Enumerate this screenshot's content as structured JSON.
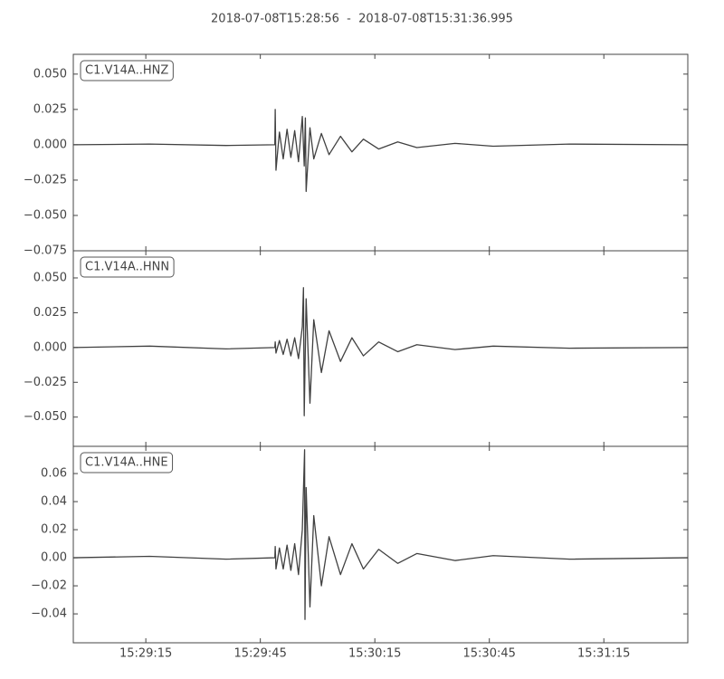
{
  "title": "2018-07-08T15:28:56  -  2018-07-08T15:31:36.995",
  "chart_data": [
    {
      "type": "line",
      "x": [
        0,
        20,
        40,
        52.8,
        52.9,
        53.1,
        54,
        55,
        56,
        57,
        58,
        59,
        60,
        60.5,
        60.8,
        61,
        62,
        63,
        65,
        67,
        70,
        73,
        76,
        80,
        85,
        90,
        100,
        110,
        130,
        160.995
      ],
      "series": [
        {
          "name": "C1.V14A..HNZ",
          "color": "#404040",
          "values": [
            0,
            0.0005,
            -0.0005,
            0,
            0.025,
            -0.018,
            0.009,
            -0.01,
            0.011,
            -0.009,
            0.01,
            -0.012,
            0.02,
            -0.015,
            0.019,
            -0.033,
            0.012,
            -0.01,
            0.008,
            -0.007,
            0.006,
            -0.005,
            0.004,
            -0.003,
            0.002,
            -0.002,
            0.001,
            -0.001,
            0.0005,
            0
          ]
        }
      ],
      "xlim": [
        0,
        160.995
      ],
      "ylim": [
        -0.075,
        0.064
      ],
      "yticks": [
        {
          "value": -0.075,
          "label": "−0.075"
        },
        {
          "value": -0.05,
          "label": "−0.050"
        },
        {
          "value": -0.025,
          "label": "−0.025"
        },
        {
          "value": 0,
          "label": "0.000"
        },
        {
          "value": 0.025,
          "label": "0.025"
        },
        {
          "value": 0.05,
          "label": "0.050"
        }
      ]
    },
    {
      "type": "line",
      "x": [
        0,
        20,
        40,
        52.8,
        52.9,
        53.1,
        54,
        55,
        56,
        57,
        58,
        59,
        60,
        60.3,
        60.5,
        61,
        62,
        63,
        65,
        67,
        70,
        73,
        76,
        80,
        85,
        90,
        100,
        110,
        130,
        160.995
      ],
      "series": [
        {
          "name": "C1.V14A..HNN",
          "color": "#404040",
          "values": [
            0,
            0.001,
            -0.001,
            0,
            0.004,
            -0.004,
            0.005,
            -0.005,
            0.006,
            -0.006,
            0.007,
            -0.008,
            0.015,
            0.043,
            -0.049,
            0.035,
            -0.04,
            0.02,
            -0.018,
            0.012,
            -0.01,
            0.007,
            -0.006,
            0.004,
            -0.003,
            0.002,
            -0.0015,
            0.001,
            -0.0005,
            0
          ]
        }
      ],
      "xlim": [
        0,
        160.995
      ],
      "ylim": [
        -0.071,
        0.0695
      ],
      "yticks": [
        {
          "value": -0.05,
          "label": "−0.050"
        },
        {
          "value": -0.025,
          "label": "−0.025"
        },
        {
          "value": 0,
          "label": "0.000"
        },
        {
          "value": 0.025,
          "label": "0.025"
        },
        {
          "value": 0.05,
          "label": "0.050"
        }
      ]
    },
    {
      "type": "line",
      "x": [
        0,
        20,
        40,
        52.8,
        52.9,
        53.1,
        54,
        55,
        56,
        57,
        58,
        59,
        60,
        60.6,
        60.7,
        61,
        62,
        63,
        65,
        67,
        70,
        73,
        76,
        80,
        85,
        90,
        100,
        110,
        130,
        160.995
      ],
      "series": [
        {
          "name": "C1.V14A..HNE",
          "color": "#404040",
          "values": [
            0,
            0.001,
            -0.001,
            0,
            0.008,
            -0.008,
            0.007,
            -0.008,
            0.009,
            -0.009,
            0.01,
            -0.012,
            0.02,
            0.077,
            -0.044,
            0.05,
            -0.035,
            0.03,
            -0.02,
            0.015,
            -0.012,
            0.01,
            -0.008,
            0.006,
            -0.004,
            0.003,
            -0.002,
            0.0015,
            -0.001,
            0
          ]
        }
      ],
      "xlim": [
        0,
        160.995
      ],
      "ylim": [
        -0.0606,
        0.0794
      ],
      "yticks": [
        {
          "value": -0.04,
          "label": "−0.04"
        },
        {
          "value": -0.02,
          "label": "−0.02"
        },
        {
          "value": 0,
          "label": "0.00"
        },
        {
          "value": 0.02,
          "label": "0.02"
        },
        {
          "value": 0.04,
          "label": "0.04"
        },
        {
          "value": 0.06,
          "label": "0.06"
        }
      ],
      "xticks": [
        {
          "value": 19,
          "label": "15:29:15"
        },
        {
          "value": 49,
          "label": "15:29:45"
        },
        {
          "value": 79,
          "label": "15:30:15"
        },
        {
          "value": 109,
          "label": "15:30:45"
        },
        {
          "value": 139,
          "label": "15:31:15"
        }
      ]
    }
  ]
}
